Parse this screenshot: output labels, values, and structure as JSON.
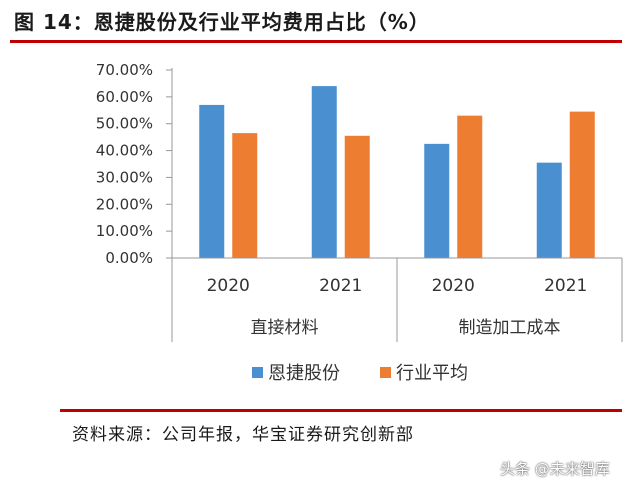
{
  "title": "图 14：恩捷股份及行业平均费用占比（%）",
  "source": "资料来源：公司年报，华宝证券研究创新部",
  "watermark": "头条 @未来智库",
  "chart_data": {
    "type": "bar",
    "categories": [
      "2020",
      "2021",
      "2020",
      "2021"
    ],
    "groups": [
      "直接材料",
      "制造加工成本"
    ],
    "series": [
      {
        "name": "恩捷股份",
        "color": "#4a8fd0",
        "values": [
          57.0,
          64.0,
          42.5,
          35.5
        ]
      },
      {
        "name": "行业平均",
        "color": "#ed7d31",
        "values": [
          46.5,
          45.5,
          53.0,
          54.5
        ]
      }
    ],
    "y_ticks": [
      "0.00%",
      "10.00%",
      "20.00%",
      "30.00%",
      "40.00%",
      "50.00%",
      "60.00%",
      "70.00%"
    ],
    "ylim": [
      0,
      70
    ],
    "grid": false,
    "legend": "bottom"
  }
}
